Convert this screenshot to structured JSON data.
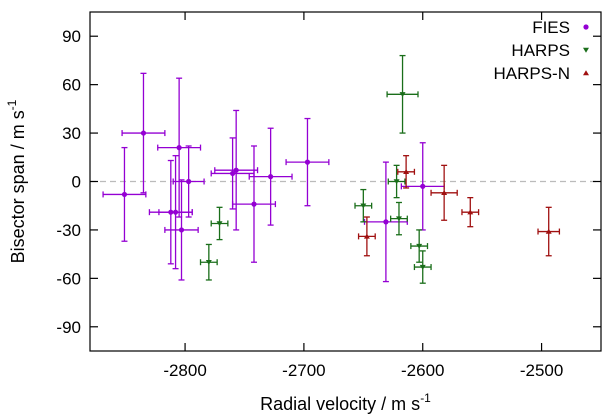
{
  "chart_data": {
    "type": "scatter",
    "title": "",
    "xlabel": "Radial velocity / m s",
    "xlabel_sup": "-1",
    "ylabel": "Bisector span / m s",
    "ylabel_sup": "-1",
    "xlim": [
      -2880,
      -2450
    ],
    "ylim": [
      -105,
      105
    ],
    "xticks": [
      -2800,
      -2700,
      -2600,
      -2500
    ],
    "yticks": [
      -90,
      -60,
      -30,
      0,
      30,
      60,
      90
    ],
    "zero_line": true,
    "legend_position": "top-right",
    "series": [
      {
        "name": "FIES",
        "color": "#9400d3",
        "marker": "circle",
        "points": [
          {
            "x": -2851,
            "y": -8,
            "xerr": 18,
            "yerr": 29
          },
          {
            "x": -2835,
            "y": 30,
            "xerr": 18,
            "yerr": 37
          },
          {
            "x": -2812,
            "y": -19,
            "xerr": 18,
            "yerr": 32
          },
          {
            "x": -2808,
            "y": -19,
            "xerr": 14,
            "yerr": 35
          },
          {
            "x": -2805,
            "y": 21,
            "xerr": 18,
            "yerr": 43
          },
          {
            "x": -2803,
            "y": -30,
            "xerr": 14,
            "yerr": 31
          },
          {
            "x": -2797,
            "y": 0,
            "xerr": 13,
            "yerr": 22
          },
          {
            "x": -2760,
            "y": 5,
            "xerr": 18,
            "yerr": 22
          },
          {
            "x": -2757,
            "y": 7,
            "xerr": 18,
            "yerr": 37
          },
          {
            "x": -2742,
            "y": -14,
            "xerr": 18,
            "yerr": 36
          },
          {
            "x": -2728,
            "y": 3,
            "xerr": 18,
            "yerr": 30
          },
          {
            "x": -2697,
            "y": 12,
            "xerr": 18,
            "yerr": 27
          },
          {
            "x": -2631,
            "y": -25,
            "xerr": 18,
            "yerr": 37
          },
          {
            "x": -2600,
            "y": -3,
            "xerr": 18,
            "yerr": 27
          }
        ]
      },
      {
        "name": "HARPS",
        "color": "#1a6e1a",
        "marker": "triangle-down",
        "points": [
          {
            "x": -2780,
            "y": -50,
            "xerr": 7,
            "yerr": 11
          },
          {
            "x": -2771,
            "y": -26,
            "xerr": 7,
            "yerr": 10
          },
          {
            "x": -2650,
            "y": -15,
            "xerr": 7,
            "yerr": 10
          },
          {
            "x": -2622,
            "y": 0,
            "xerr": 7,
            "yerr": 10
          },
          {
            "x": -2620,
            "y": -23,
            "xerr": 7,
            "yerr": 10
          },
          {
            "x": -2617,
            "y": 54,
            "xerr": 13,
            "yerr": 24
          },
          {
            "x": -2603,
            "y": -40,
            "xerr": 7,
            "yerr": 10
          },
          {
            "x": -2600,
            "y": -53,
            "xerr": 7,
            "yerr": 10
          }
        ]
      },
      {
        "name": "HARPS-N",
        "color": "#a01010",
        "marker": "triangle-up",
        "points": [
          {
            "x": -2647,
            "y": -34,
            "xerr": 7,
            "yerr": 12
          },
          {
            "x": -2614,
            "y": 6,
            "xerr": 7,
            "yerr": 10
          },
          {
            "x": -2582,
            "y": -7,
            "xerr": 11,
            "yerr": 17
          },
          {
            "x": -2560,
            "y": -19,
            "xerr": 7,
            "yerr": 9
          },
          {
            "x": -2494,
            "y": -31,
            "xerr": 9,
            "yerr": 15
          }
        ]
      }
    ]
  }
}
